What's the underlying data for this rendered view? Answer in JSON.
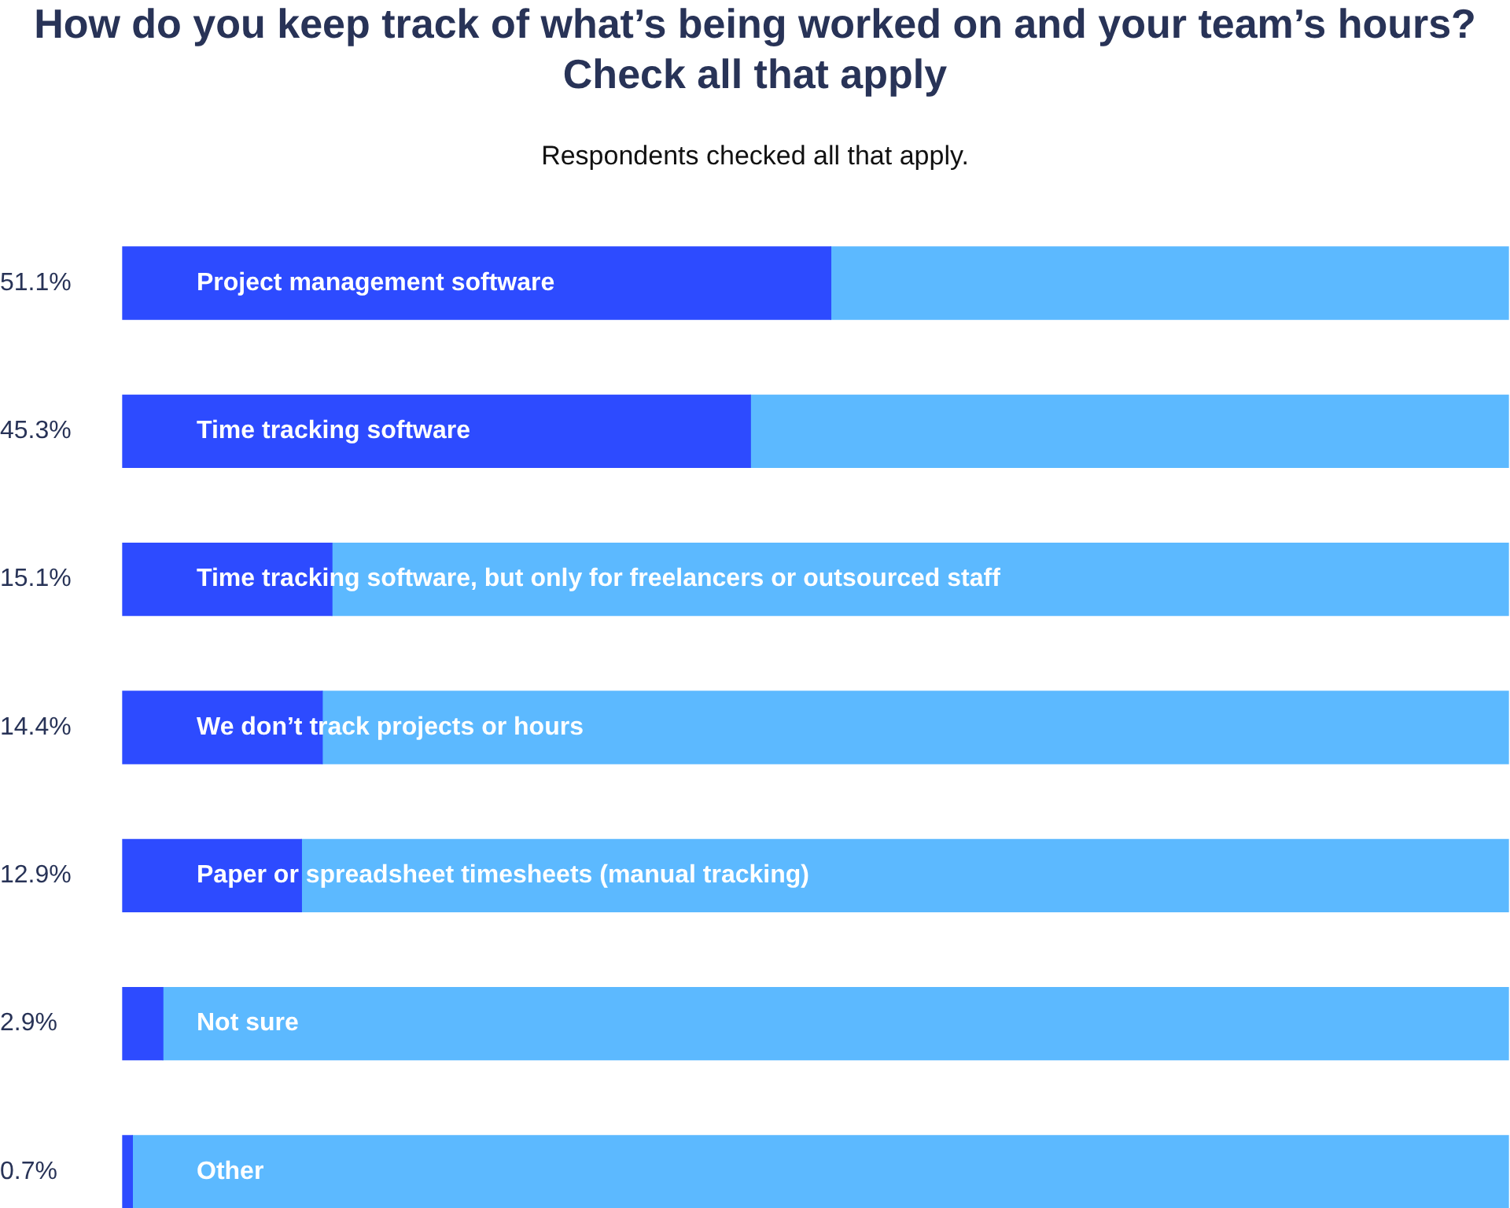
{
  "chart_data": {
    "type": "bar",
    "orientation": "horizontal",
    "stacked": true,
    "title": "How do you keep track of what’s being worked on and your team’s hours? Check all that apply",
    "subtitle": "Respondents checked all that apply.",
    "categories": [
      "Project management software",
      "Time tracking software",
      "Time tracking software, but only for freelancers or outsourced staff",
      "We don’t track projects or hours",
      "Paper or spreadsheet timesheets (manual tracking)",
      "Not sure",
      "Other"
    ],
    "series": [
      {
        "color": "#2d4bff",
        "values": [
          51.1,
          45.3,
          15.1,
          14.4,
          12.9,
          2.9,
          0.7
        ],
        "value_labels": [
          "51.1%",
          "45.3%",
          "15.1%",
          "14.4%",
          "12.9%",
          "2.9%",
          "0.7%"
        ]
      },
      {
        "color": "#5cb9ff",
        "values": [
          48.9,
          54.7,
          84.9,
          85.6,
          87.1,
          97.1,
          99.3
        ]
      }
    ],
    "xlim": [
      0,
      100
    ],
    "tick_labels": "y"
  }
}
